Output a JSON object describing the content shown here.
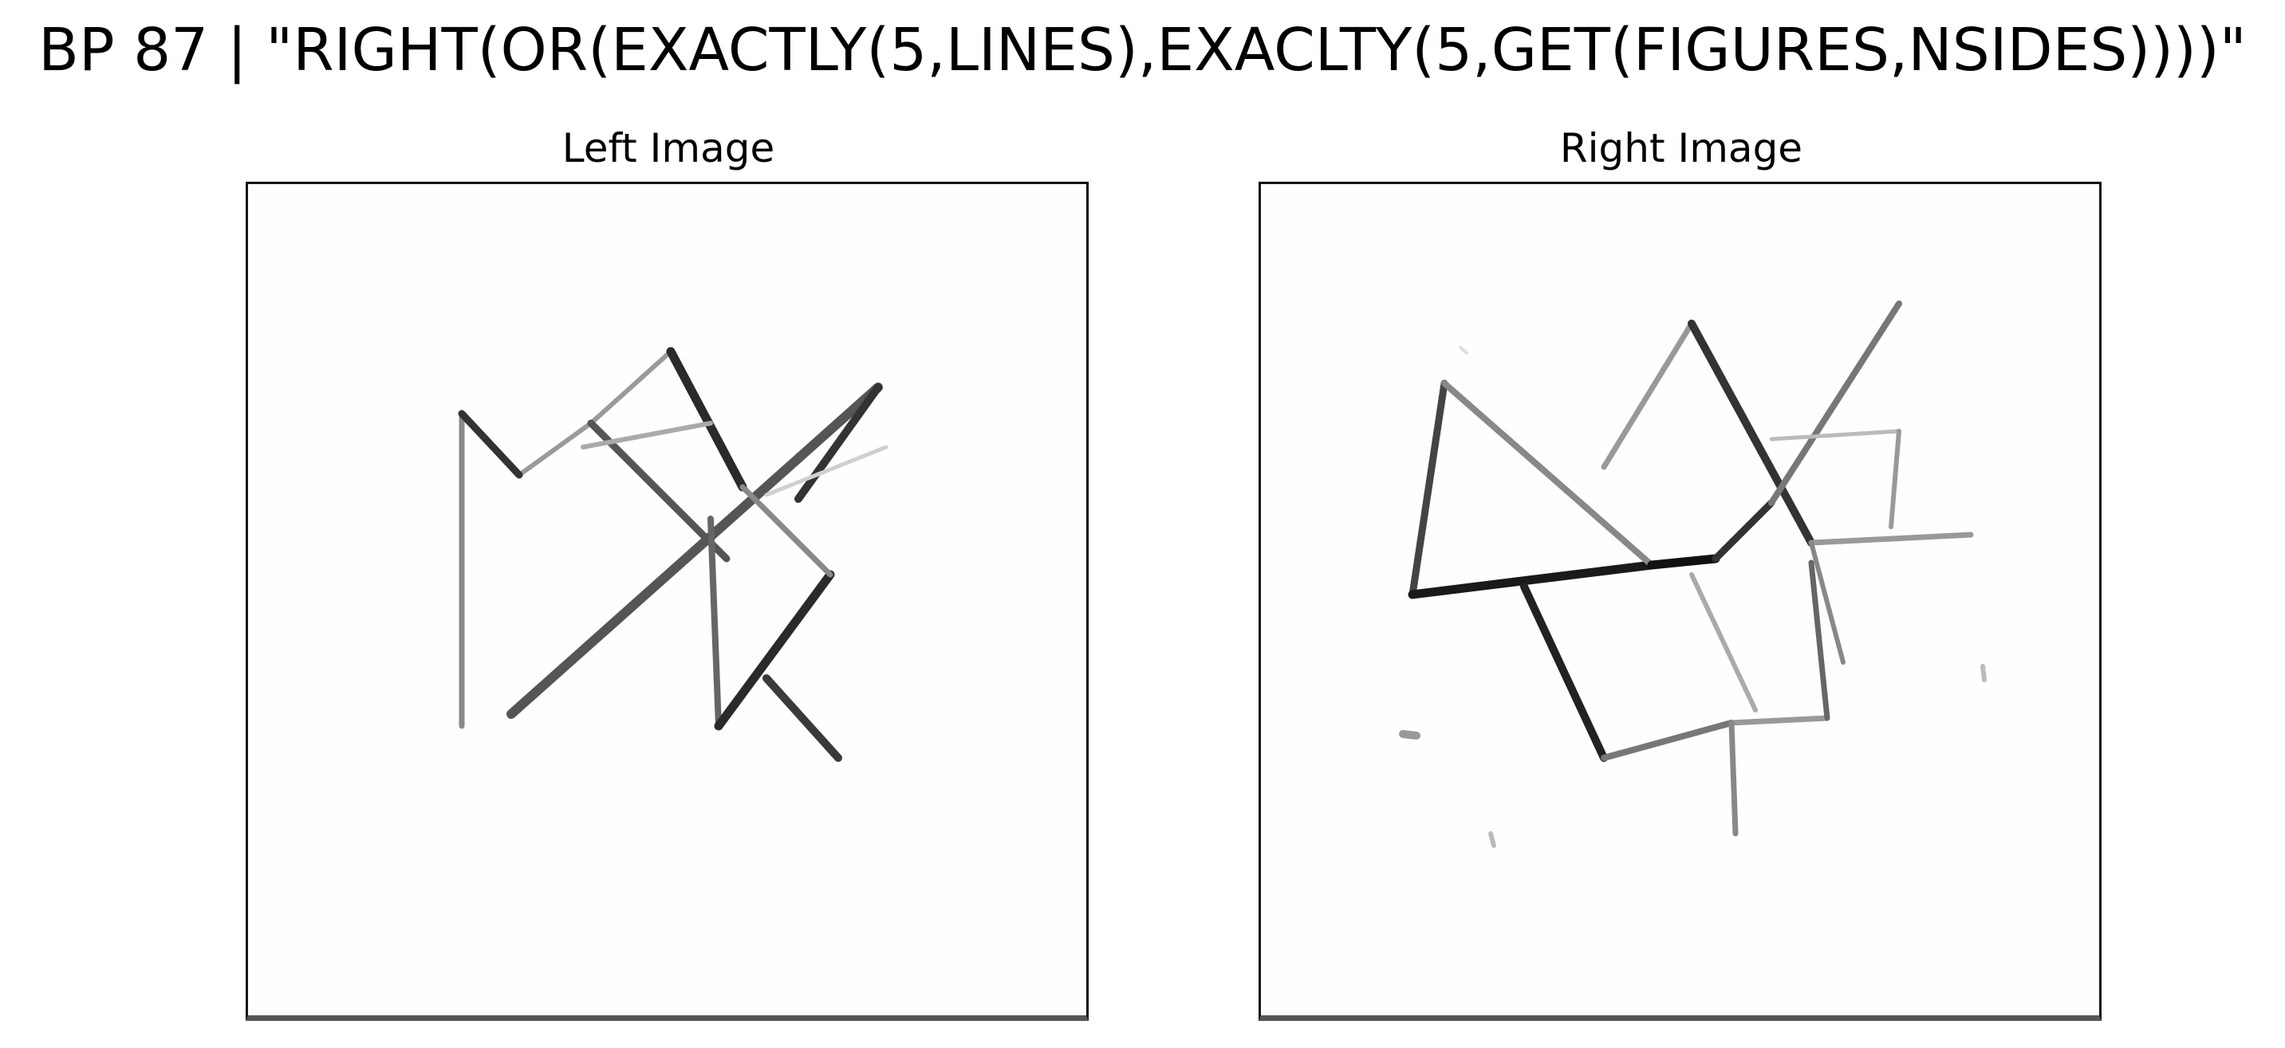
{
  "figure": {
    "title": "BP 87 | \"RIGHT(OR(EXACTLY(5,LINES),EXACLTY(5,GET(FIGURES,NSIDES))))\"",
    "panels": [
      {
        "id": "left",
        "title": "Left Image"
      },
      {
        "id": "right",
        "title": "Right Image"
      }
    ]
  },
  "colors": {
    "stroke_dark": "#1a1a1a",
    "stroke_mid": "#666666",
    "stroke_light": "#bdbdbd",
    "frame_border": "#111111"
  }
}
